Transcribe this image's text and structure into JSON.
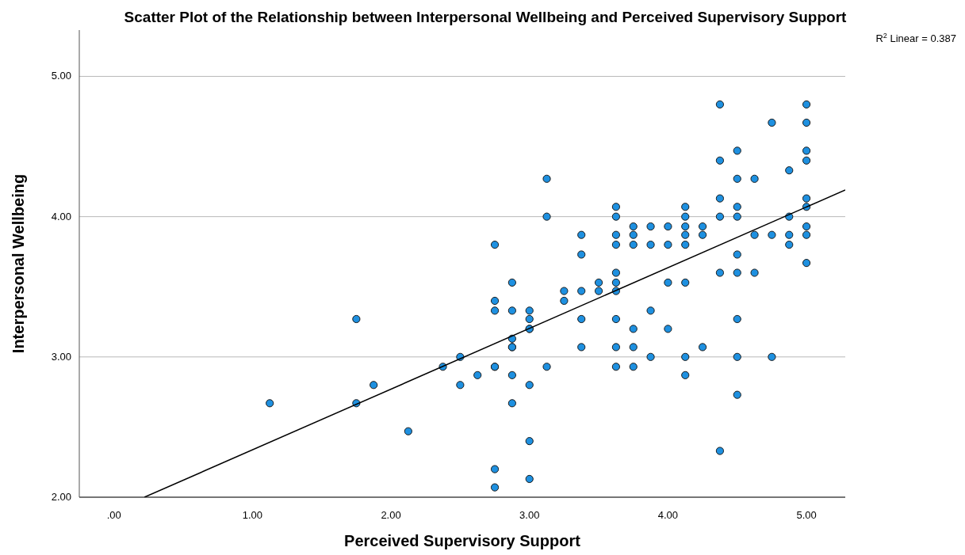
{
  "chart_data": {
    "type": "scatter",
    "title": "Scatter Plot of the Relationship between Interpersonal Wellbeing and Perceived Supervisory Support",
    "xlabel": "Perceived Supervisory Support",
    "ylabel": "Interpersonal Wellbeing",
    "annotations": [
      "R$^{2}$ Linear = 0.387"
    ],
    "xlim": [
      -0.25,
      5.28
    ],
    "ylim": [
      2,
      5.33
    ],
    "xticks": [
      {
        "value": 0,
        "label": ".00"
      },
      {
        "value": 1,
        "label": "1.00"
      },
      {
        "value": 2,
        "label": "2.00"
      },
      {
        "value": 3,
        "label": "3.00"
      },
      {
        "value": 4,
        "label": "4.00"
      },
      {
        "value": 5,
        "label": "5.00"
      }
    ],
    "yticks": [
      {
        "value": 2,
        "label": "2.00"
      },
      {
        "value": 3,
        "label": "3.00"
      },
      {
        "value": 4,
        "label": "4.00"
      },
      {
        "value": 5,
        "label": "5.00"
      }
    ],
    "grid": "y",
    "marker": "circle",
    "series": [
      {
        "color": "#1e90e0",
        "x": [
          1.125,
          1.75,
          1.75,
          1.875,
          2.125,
          2.375,
          2.5,
          2.5,
          2.625,
          2.75,
          2.75,
          2.75,
          2.75,
          2.75,
          2.75,
          2.75,
          2.875,
          2.875,
          2.875,
          2.875,
          2.875,
          2.875,
          2.875,
          3,
          3,
          3,
          3,
          3,
          3,
          3,
          3.125,
          3.125,
          3.125,
          3.25,
          3.25,
          3.375,
          3.375,
          3.375,
          3.375,
          3.375,
          3.5,
          3.5,
          3.625,
          3.625,
          3.625,
          3.625,
          3.625,
          3.625,
          3.625,
          3.625,
          3.625,
          3.625,
          3.75,
          3.75,
          3.75,
          3.75,
          3.75,
          3.75,
          3.875,
          3.875,
          3.875,
          3.875,
          4,
          4,
          4,
          4,
          4.125,
          4.125,
          4.125,
          4.125,
          4.125,
          4.125,
          4.125,
          4.125,
          4.25,
          4.25,
          4.25,
          4.375,
          4.375,
          4.375,
          4.375,
          4.375,
          4.375,
          4.5,
          4.5,
          4.5,
          4.5,
          4.5,
          4.5,
          4.5,
          4.5,
          4.5,
          4.625,
          4.625,
          4.625,
          4.75,
          4.75,
          4.75,
          4.875,
          4.875,
          4.875,
          4.875,
          5,
          5,
          5,
          5,
          5,
          5,
          5,
          5,
          5
        ],
        "values": [
          2.67,
          3.27,
          2.67,
          2.8,
          2.47,
          2.93,
          3,
          2.8,
          2.87,
          3.8,
          3.4,
          3.33,
          2.93,
          2.2,
          2.07,
          2.93,
          3.53,
          3.33,
          3.13,
          3.07,
          2.87,
          2.67,
          3.07,
          3.33,
          3.27,
          3.2,
          2.8,
          2.4,
          2.13,
          3.2,
          4.27,
          4,
          2.93,
          3.47,
          3.4,
          3.87,
          3.73,
          3.47,
          3.27,
          3.07,
          3.53,
          3.47,
          4.07,
          4,
          3.87,
          3.8,
          3.6,
          3.53,
          3.47,
          3.27,
          3.07,
          2.93,
          3.93,
          3.87,
          3.8,
          3.2,
          3.07,
          2.93,
          3.93,
          3.8,
          3.33,
          3,
          3.93,
          3.8,
          3.53,
          3.2,
          4.07,
          4,
          3.93,
          3.87,
          3.8,
          3.53,
          3,
          2.87,
          3.93,
          3.87,
          3.07,
          4.8,
          4.4,
          4.13,
          4,
          3.6,
          2.33,
          4.47,
          4.27,
          4.07,
          4,
          3.73,
          3.6,
          3.27,
          3,
          2.73,
          4.27,
          3.87,
          3.6,
          4.67,
          3.87,
          3,
          4.33,
          4,
          3.87,
          3.8,
          4.8,
          4.67,
          4.47,
          4.4,
          4.13,
          4.07,
          3.93,
          3.87,
          3.67
        ]
      },
      {
        "type": "line",
        "color": "#000000",
        "marker": "none",
        "x": [
          0.22,
          5.28
        ],
        "values": [
          2,
          4.19
        ]
      }
    ]
  }
}
